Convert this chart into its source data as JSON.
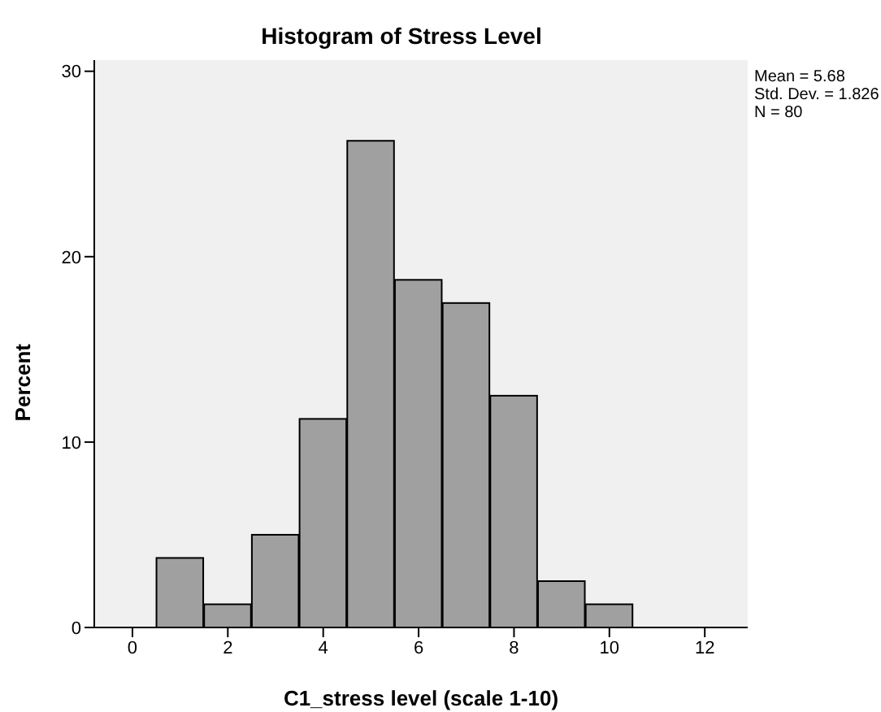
{
  "chart_data": {
    "type": "histogram",
    "title": "Histogram of Stress Level",
    "xlabel": "C1_stress level (scale 1-10)",
    "ylabel": "Percent",
    "bins": [
      0.5,
      1.5,
      2.5,
      3.5,
      4.5,
      5.5,
      6.5,
      7.5,
      8.5,
      9.5,
      10.5
    ],
    "values": [
      3.75,
      1.25,
      5,
      11.25,
      26.25,
      18.75,
      17.5,
      12.5,
      2.5,
      1.25
    ],
    "color": "#a0a0a0",
    "xlim": [
      -0.8,
      12.9
    ],
    "xticks": [
      0,
      2,
      4,
      6,
      8,
      10,
      12
    ],
    "ylim": [
      0,
      30.6
    ],
    "yticks": [
      0,
      10,
      20,
      30
    ],
    "annotations": [
      "Mean = 5.68",
      "Std. Dev. = 1.826",
      "N = 80"
    ],
    "grid": false
  }
}
